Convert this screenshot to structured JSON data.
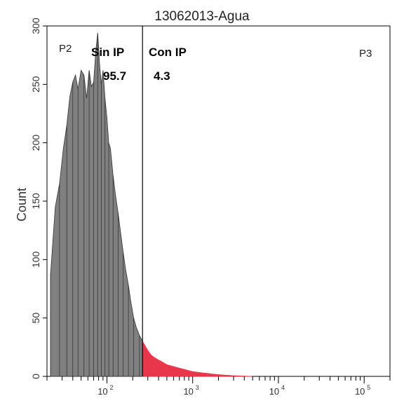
{
  "chart_data": {
    "type": "area",
    "title": "13062013-Agua",
    "ylabel": "Count",
    "xlabel": "",
    "xscale": "log",
    "xlim": [
      20,
      200000
    ],
    "ylim": [
      0,
      300
    ],
    "yticks": [
      0,
      50,
      100,
      150,
      200,
      250,
      300
    ],
    "xticks": [
      {
        "value": 100,
        "base": "10",
        "exp": "2"
      },
      {
        "value": 1000,
        "base": "10",
        "exp": "3"
      },
      {
        "value": 10000,
        "base": "10",
        "exp": "4"
      },
      {
        "value": 100000,
        "base": "10",
        "exp": "5"
      }
    ],
    "gates": {
      "p2_label": "P2",
      "p3_label": "P3",
      "boundary_x": 260
    },
    "annotations": {
      "sin_ip_label": "Sin IP",
      "sin_ip_value": "95.7",
      "con_ip_label": "Con IP",
      "con_ip_value": "4.3"
    },
    "series": [
      {
        "region": "negative",
        "color": "#808080",
        "x": [
          22,
          25,
          28,
          31,
          34,
          37,
          40,
          43,
          46,
          50,
          54,
          58,
          62,
          66,
          70,
          74,
          78,
          82,
          86,
          90,
          95,
          100,
          105,
          110,
          118,
          126,
          135,
          145,
          155,
          165,
          178,
          190,
          205,
          220,
          240,
          260
        ],
        "y": [
          88,
          145,
          165,
          195,
          215,
          240,
          252,
          258,
          246,
          262,
          258,
          238,
          262,
          248,
          252,
          278,
          294,
          268,
          250,
          262,
          238,
          222,
          200,
          195,
          172,
          155,
          140,
          122,
          106,
          92,
          78,
          64,
          50,
          42,
          35,
          30
        ]
      },
      {
        "region": "positive",
        "color": "#e8364a",
        "x": [
          260,
          280,
          300,
          330,
          360,
          400,
          450,
          500,
          560,
          630,
          700,
          800,
          900,
          1000,
          1150,
          1300,
          1500,
          1700,
          2000,
          2400,
          3000,
          3800,
          5000
        ],
        "y": [
          30,
          26,
          22,
          18,
          16,
          14,
          12,
          10,
          9,
          8,
          7,
          6,
          5,
          4,
          3.5,
          3,
          2.5,
          2,
          1.5,
          1,
          0.6,
          0.3,
          0
        ]
      }
    ]
  }
}
